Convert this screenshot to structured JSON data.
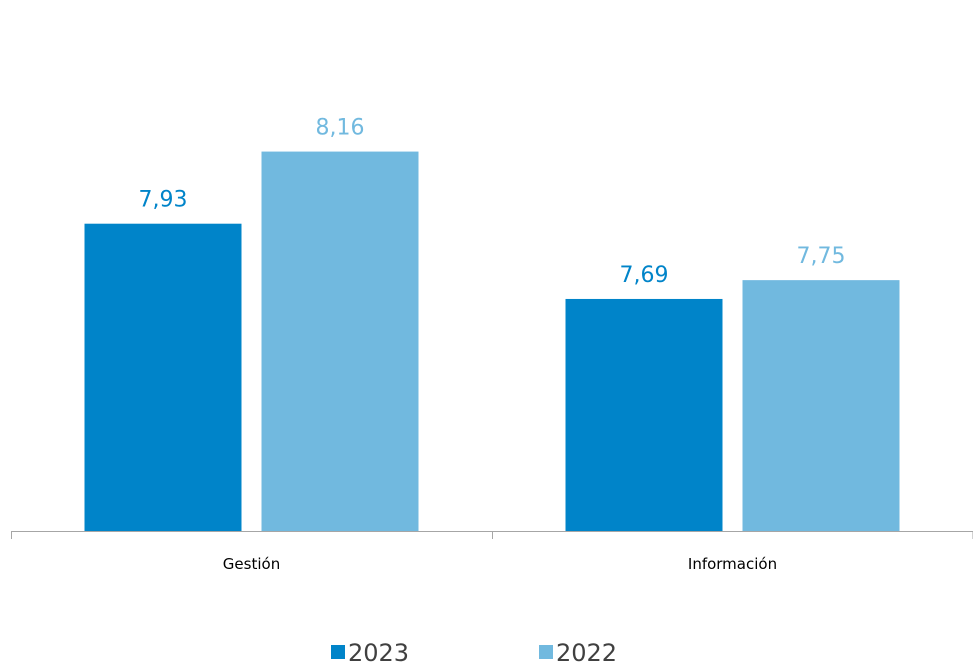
{
  "chart_data": {
    "type": "bar",
    "categories": [
      "Gestión",
      "Información"
    ],
    "series": [
      {
        "name": "2023",
        "values": [
          7.93,
          7.69
        ],
        "labels": [
          "7,93",
          "7,69"
        ],
        "color": "#0084C9"
      },
      {
        "name": "2022",
        "values": [
          8.16,
          7.75
        ],
        "labels": [
          "8,16",
          "7,75"
        ],
        "color": "#71B9DF"
      }
    ],
    "title": "",
    "xlabel": "",
    "ylabel": "",
    "ylim": [
      6.95,
      8.35
    ],
    "grid": false,
    "legend_position": "bottom",
    "axis_color": "#A6A6A6"
  }
}
